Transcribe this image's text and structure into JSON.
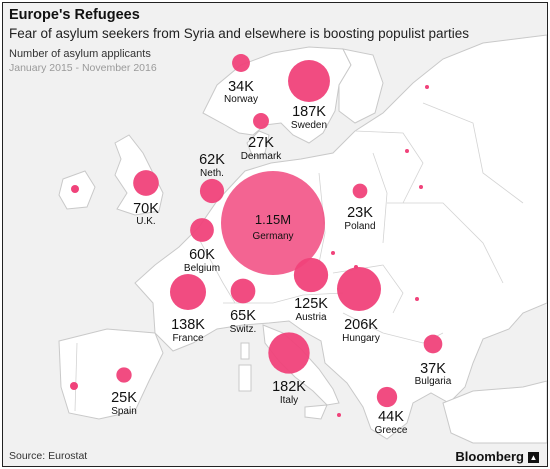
{
  "header": {
    "title": "Europe's Refugees",
    "subtitle": "Fear of asylum seekers from Syria and elsewhere is boosting populist parties",
    "measure_label": "Number of asylum applicants",
    "date_range": "January 2015 - November 2016"
  },
  "footer": {
    "source": "Source: Eurostat",
    "brand": "Bloomberg",
    "brand_icon": "bloomberg-logo-icon"
  },
  "colors": {
    "bubble": "#f0427a",
    "land": "#ffffff",
    "sea": "#f1f1f1",
    "border": "#c9c9c9"
  },
  "chart_data": {
    "type": "bubble-map",
    "title": "Europe's Refugees",
    "subtitle": "Fear of asylum seekers from Syria and elsewhere is boosting populist parties",
    "measure": "Number of asylum applicants",
    "period": "January 2015 - November 2016",
    "series": [
      {
        "country": "Germany",
        "label": "1.15M",
        "value": 1150000
      },
      {
        "country": "Hungary",
        "label": "206K",
        "value": 206000
      },
      {
        "country": "Sweden",
        "label": "187K",
        "value": 187000
      },
      {
        "country": "Italy",
        "label": "182K",
        "value": 182000
      },
      {
        "country": "France",
        "label": "138K",
        "value": 138000
      },
      {
        "country": "Austria",
        "label": "125K",
        "value": 125000
      },
      {
        "country": "U.K.",
        "label": "70K",
        "value": 70000
      },
      {
        "country": "Switz.",
        "label": "65K",
        "value": 65000
      },
      {
        "country": "Neth.",
        "label": "62K",
        "value": 62000
      },
      {
        "country": "Belgium",
        "label": "60K",
        "value": 60000
      },
      {
        "country": "Greece",
        "label": "44K",
        "value": 44000
      },
      {
        "country": "Bulgaria",
        "label": "37K",
        "value": 37000
      },
      {
        "country": "Norway",
        "label": "34K",
        "value": 34000
      },
      {
        "country": "Denmark",
        "label": "27K",
        "value": 27000
      },
      {
        "country": "Spain",
        "label": "25K",
        "value": 25000
      },
      {
        "country": "Poland",
        "label": "23K",
        "value": 23000
      }
    ],
    "unlabeled_small_markers": 9
  }
}
